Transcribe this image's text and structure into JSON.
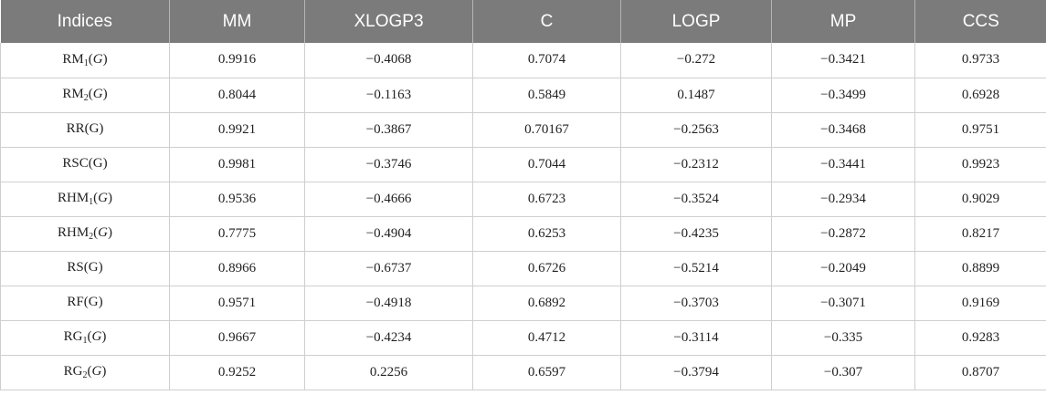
{
  "table": {
    "headers": [
      "Indices",
      "MM",
      "XLOGP3",
      "C",
      "LOGP",
      "MP",
      "CCS"
    ],
    "rows": [
      {
        "name": "RM",
        "sub": "1",
        "open": "(",
        "var": "G",
        "var_italic": true,
        "close": ")",
        "values": [
          "0.9916",
          "−0.4068",
          "0.7074",
          "−0.272",
          "−0.3421",
          "0.9733"
        ]
      },
      {
        "name": "RM",
        "sub": "2",
        "open": "(",
        "var": "G",
        "var_italic": true,
        "close": ")",
        "values": [
          "0.8044",
          "−0.1163",
          "0.5849",
          "0.1487",
          "−0.3499",
          "0.6928"
        ]
      },
      {
        "name": "RR",
        "sub": "",
        "open": "(",
        "var": "G",
        "var_italic": false,
        "close": ")",
        "values": [
          "0.9921",
          "−0.3867",
          "0.70167",
          "−0.2563",
          "−0.3468",
          "0.9751"
        ]
      },
      {
        "name": "RSC",
        "sub": "",
        "open": "(",
        "var": "G",
        "var_italic": false,
        "close": ")",
        "values": [
          "0.9981",
          "−0.3746",
          "0.7044",
          "−0.2312",
          "−0.3441",
          "0.9923"
        ]
      },
      {
        "name": "RHM",
        "sub": "1",
        "open": "(",
        "var": "G",
        "var_italic": true,
        "close": ")",
        "values": [
          "0.9536",
          "−0.4666",
          "0.6723",
          "−0.3524",
          "−0.2934",
          "0.9029"
        ]
      },
      {
        "name": "RHM",
        "sub": "2",
        "open": "(",
        "var": "G",
        "var_italic": true,
        "close": ")",
        "values": [
          "0.7775",
          "−0.4904",
          "0.6253",
          "−0.4235",
          "−0.2872",
          "0.8217"
        ]
      },
      {
        "name": "RS",
        "sub": "",
        "open": "(",
        "var": "G",
        "var_italic": false,
        "close": ")",
        "values": [
          "0.8966",
          "−0.6737",
          "0.6726",
          "−0.5214",
          "−0.2049",
          "0.8899"
        ]
      },
      {
        "name": "RF",
        "sub": "",
        "open": "(",
        "var": "G",
        "var_italic": false,
        "close": ")",
        "values": [
          "0.9571",
          "−0.4918",
          "0.6892",
          "−0.3703",
          "−0.3071",
          "0.9169"
        ]
      },
      {
        "name": "RG",
        "sub": "1",
        "open": "(",
        "var": "G",
        "var_italic": true,
        "close": ")",
        "values": [
          "0.9667",
          "−0.4234",
          "0.4712",
          "−0.3114",
          "−0.335",
          "0.9283"
        ]
      },
      {
        "name": "RG",
        "sub": "2",
        "open": "(",
        "var": "G",
        "var_italic": true,
        "close": ")",
        "values": [
          "0.9252",
          "0.2256",
          "0.6597",
          "−0.3794",
          "−0.307",
          "0.8707"
        ]
      }
    ]
  },
  "colors": {
    "header_background": "#7b7b7b",
    "header_text": "#ffffff",
    "grid_line": "#cfcfcf",
    "cell_text": "#222222"
  }
}
